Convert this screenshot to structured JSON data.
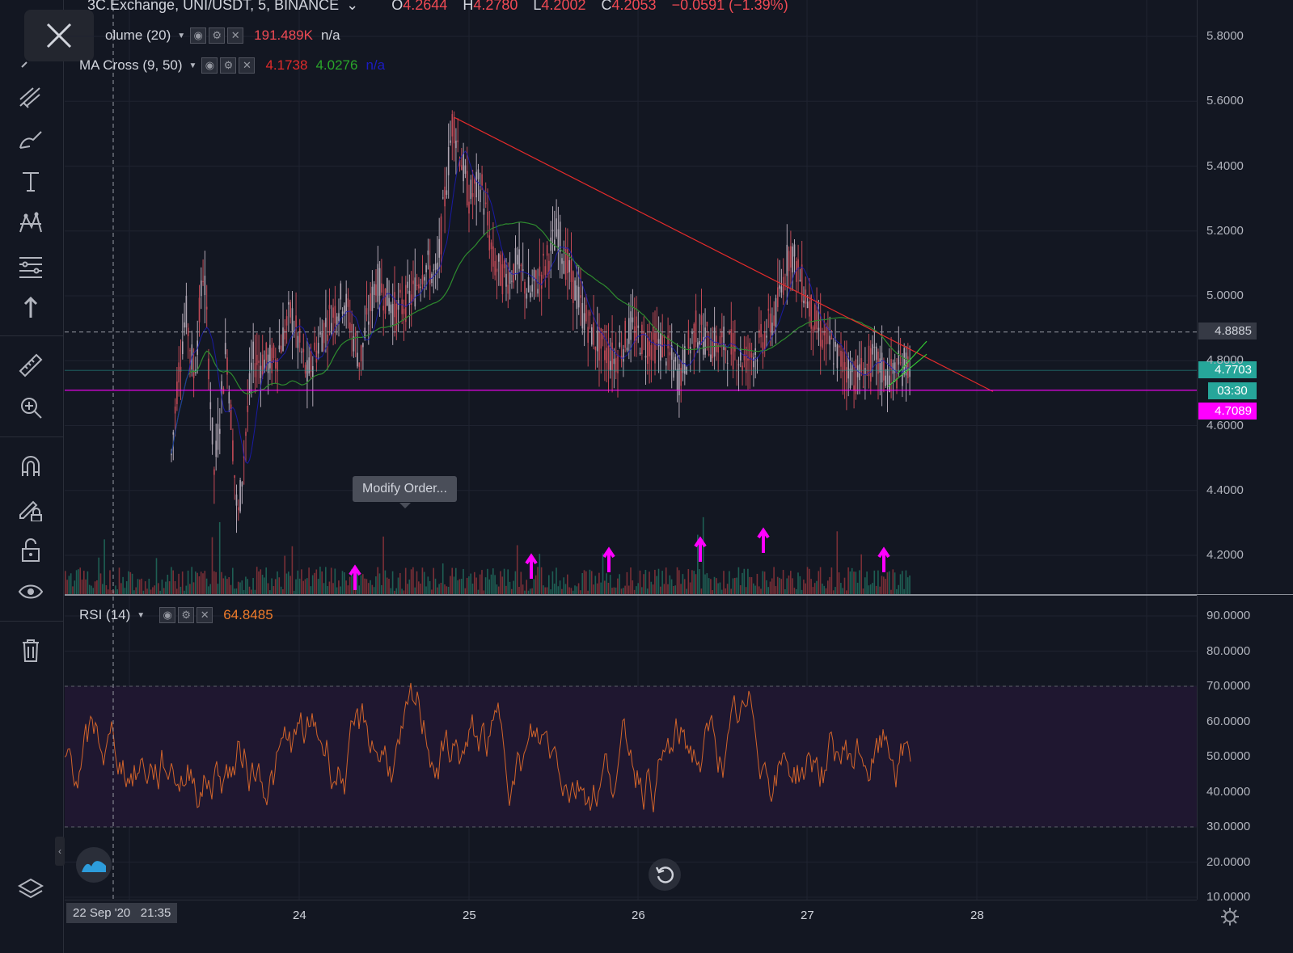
{
  "header": {
    "symbol": "3C.Exchange, UNI/USDT, 5, BINANCE",
    "caret": "⌄",
    "o_label": "O",
    "o_value": "4.2644",
    "h_label": "H",
    "h_value": "4.2780",
    "l_label": "L",
    "l_value": "4.2002",
    "c_label": "C",
    "c_value": "4.2053",
    "change": "−0.0591 (−1.39%)"
  },
  "indicators": {
    "volume": {
      "name": "olume (20)",
      "value": "191.489K",
      "value2": "n/a"
    },
    "ma_cross": {
      "name": "MA Cross (9, 50)",
      "value_fast": "4.1738",
      "value_slow": "4.0276",
      "value3": "n/a"
    },
    "rsi": {
      "name": "RSI (14)",
      "value": "64.8485"
    }
  },
  "price_axis": {
    "labels": [
      "5.8000",
      "5.6000",
      "5.4000",
      "5.2000",
      "5.0000",
      "4.8000",
      "4.6000",
      "4.4000",
      "4.2000"
    ],
    "crosshair_value": "4.8885",
    "current_price": "4.7703",
    "countdown": "03:30",
    "line_price": "4.7089"
  },
  "rsi_axis": {
    "labels": [
      "90.0000",
      "80.0000",
      "70.0000",
      "60.0000",
      "50.0000",
      "40.0000",
      "30.0000",
      "20.0000",
      "10.0000"
    ]
  },
  "time_axis": {
    "labels": [
      "24",
      "25",
      "26",
      "27",
      "28"
    ],
    "crosshair_label": "22 Sep '20   21:35"
  },
  "tooltip": {
    "text": "Modify Order..."
  },
  "colors": {
    "background": "#131722",
    "up": "#b0a6b3",
    "down": "#c24a56",
    "red_line": "#e32b2b",
    "magenta": "#ff00ff",
    "ma_fast": "#1b1bc2",
    "ma_slow": "#2e8b2e",
    "rsi": "#d2642a",
    "current_price_bg": "#26a69a",
    "volume_up": "#1e5f54",
    "volume_down": "#7a2f36"
  },
  "icons": [
    "close-icon",
    "cross-icon",
    "trend-line-icon",
    "pitchfork-icon",
    "brush-icon",
    "text-icon",
    "pattern-icon",
    "fib-icon",
    "arrow-up-icon",
    "ruler-icon",
    "zoom-in-icon",
    "magnet-icon",
    "lock-draw-icon",
    "lock-icon",
    "eye-icon",
    "trash-icon",
    "collapse-icon",
    "logo-icon",
    "layers-icon",
    "reset-icon",
    "settings-gear-icon"
  ]
}
